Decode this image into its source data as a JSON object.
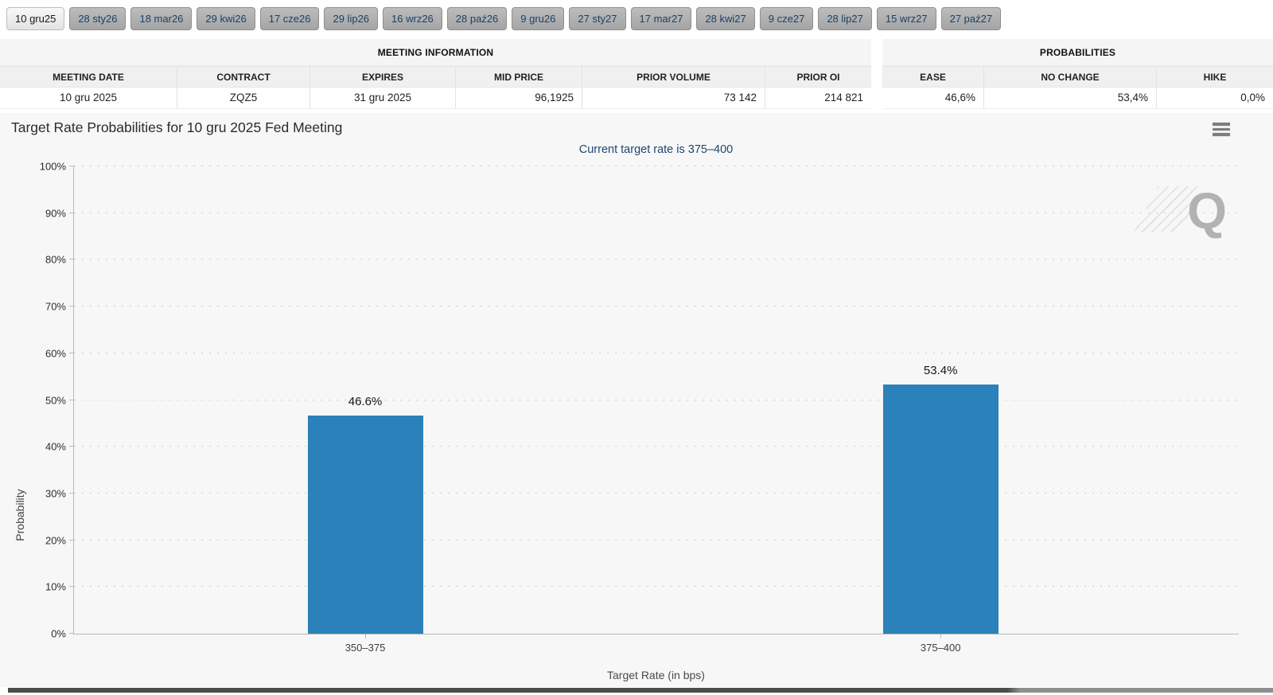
{
  "tabs": [
    {
      "label": "10 gru25",
      "active": true
    },
    {
      "label": "28 sty26",
      "active": false
    },
    {
      "label": "18 mar26",
      "active": false
    },
    {
      "label": "29 kwi26",
      "active": false
    },
    {
      "label": "17 cze26",
      "active": false
    },
    {
      "label": "29 lip26",
      "active": false
    },
    {
      "label": "16 wrz26",
      "active": false
    },
    {
      "label": "28 paź26",
      "active": false
    },
    {
      "label": "9 gru26",
      "active": false
    },
    {
      "label": "27 sty27",
      "active": false
    },
    {
      "label": "17 mar27",
      "active": false
    },
    {
      "label": "28 kwi27",
      "active": false
    },
    {
      "label": "9 cze27",
      "active": false
    },
    {
      "label": "28 lip27",
      "active": false
    },
    {
      "label": "15 wrz27",
      "active": false
    },
    {
      "label": "27 paź27",
      "active": false
    }
  ],
  "meeting_info": {
    "title": "MEETING INFORMATION",
    "columns": [
      "MEETING DATE",
      "CONTRACT",
      "EXPIRES",
      "MID PRICE",
      "PRIOR VOLUME",
      "PRIOR OI"
    ],
    "values": [
      "10 gru 2025",
      "ZQZ5",
      "31 gru 2025",
      "96,1925",
      "73 142",
      "214 821"
    ]
  },
  "probabilities_table": {
    "title": "PROBABILITIES",
    "columns": [
      "EASE",
      "NO CHANGE",
      "HIKE"
    ],
    "values": [
      "46,6%",
      "53,4%",
      "0,0%"
    ]
  },
  "chart_data": {
    "type": "bar",
    "title": "Target Rate Probabilities for 10 gru 2025 Fed Meeting",
    "subtitle": "Current target rate is 375–400",
    "categories": [
      "350–375",
      "375–400"
    ],
    "values": [
      46.6,
      53.4
    ],
    "value_labels": [
      "46.6%",
      "53.4%"
    ],
    "xlabel": "Target Rate (in bps)",
    "ylabel": "Probability",
    "ylim": [
      0,
      100
    ],
    "y_ticks": [
      "0%",
      "10%",
      "20%",
      "30%",
      "40%",
      "50%",
      "60%",
      "70%",
      "80%",
      "90%",
      "100%"
    ],
    "grid": "dotted-horizontal",
    "legend": "none",
    "bar_color": "#2b81b9",
    "watermark": "Q"
  },
  "icons": {
    "menu": "hamburger-menu-icon"
  }
}
